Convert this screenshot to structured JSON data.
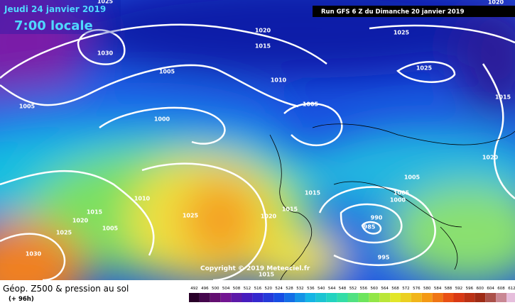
{
  "header": {
    "date": "Jeudi 24 janvier 2019",
    "time": "7:00 locale",
    "run": "Run GFS 6 Z du Dimanche 20 janvier 2019"
  },
  "copyright": "Copyright © 2019 Meteociel.fr",
  "footer": {
    "title": "Géop. Z500 & pression au sol",
    "lead": "(+ 96h)"
  },
  "scale": [
    492,
    496,
    500,
    504,
    508,
    512,
    516,
    520,
    524,
    528,
    532,
    536,
    540,
    544,
    548,
    552,
    556,
    560,
    564,
    568,
    572,
    576,
    580,
    584,
    588,
    592,
    596,
    600,
    604,
    608,
    612
  ],
  "isobars": [
    "1025",
    "1030",
    "1020",
    "1015",
    "1005",
    "1010",
    "1005",
    "1000",
    "1005",
    "1025",
    "1025",
    "1015",
    "1020",
    "1005",
    "1005",
    "1000",
    "1015",
    "1015",
    "1010",
    "1015",
    "1020",
    "1005",
    "1025",
    "1025",
    "1020",
    "990",
    "985",
    "995",
    "1030",
    "1020",
    "1015"
  ]
}
